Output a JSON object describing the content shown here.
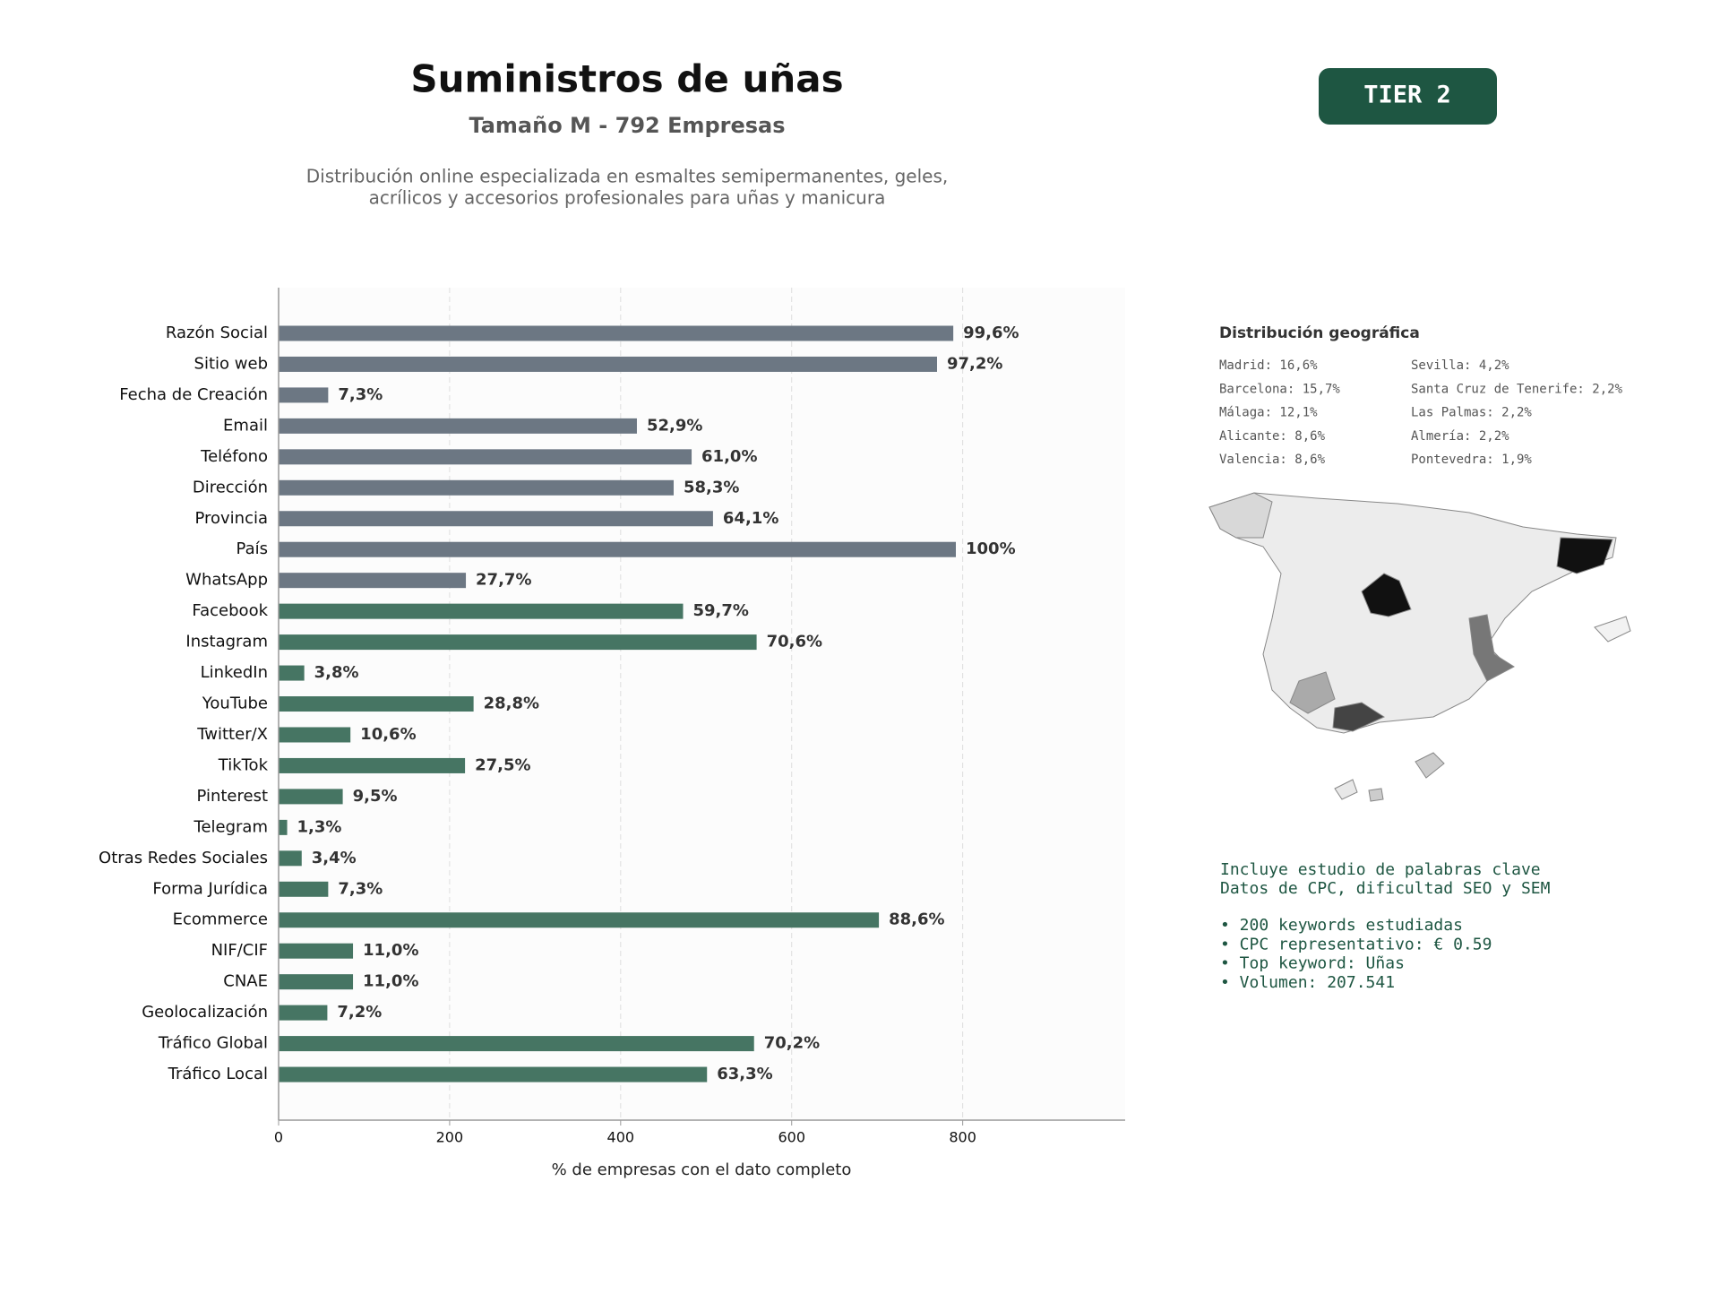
{
  "title": "Suministros de uñas",
  "subtitle": "Tamaño M - 792 Empresas",
  "description": [
    "Distribución online especializada en esmaltes semipermanentes, geles,",
    "acrílicos y accesorios profesionales para uñas y manicura"
  ],
  "badge": "TIER 2",
  "chart_data": {
    "type": "barh",
    "xlabel": "% de empresas con el dato completo",
    "categories": [
      "Razón Social",
      "Sitio web",
      "Fecha de Creación",
      "Email",
      "Teléfono",
      "Dirección",
      "Provincia",
      "País",
      "WhatsApp",
      "Facebook",
      "Instagram",
      "LinkedIn",
      "YouTube",
      "Twitter/X",
      "TikTok",
      "Pinterest",
      "Telegram",
      "Otras Redes Sociales",
      "Forma Jurídica",
      "Ecommerce",
      "NIF/CIF",
      "CNAE",
      "Geolocalización",
      "Tráfico Global",
      "Tráfico Local"
    ],
    "values": [
      789,
      770,
      58,
      419,
      483,
      462,
      508,
      792,
      219,
      473,
      559,
      30,
      228,
      84,
      218,
      75,
      10,
      27,
      58,
      702,
      87,
      87,
      57,
      556,
      501
    ],
    "value_labels": [
      "99,6%",
      "97,2%",
      "7,3%",
      "52,9%",
      "61,0%",
      "58,3%",
      "64,1%",
      "100%",
      "27,7%",
      "59,7%",
      "70,6%",
      "3,8%",
      "28,8%",
      "10,6%",
      "27,5%",
      "9,5%",
      "1,3%",
      "3,4%",
      "7,3%",
      "88,6%",
      "11,0%",
      "11,0%",
      "7,2%",
      "70,2%",
      "63,3%"
    ],
    "colors": [
      "#6c7783",
      "#6c7783",
      "#6c7783",
      "#6c7783",
      "#6c7783",
      "#6c7783",
      "#6c7783",
      "#6c7783",
      "#6c7783",
      "#467563",
      "#467563",
      "#467563",
      "#467563",
      "#467563",
      "#467563",
      "#467563",
      "#467563",
      "#467563",
      "#467563",
      "#467563",
      "#467563",
      "#467563",
      "#467563",
      "#467563",
      "#467563"
    ],
    "xlim": [
      0,
      990
    ],
    "xticks": [
      0,
      200,
      400,
      600,
      800
    ],
    "grid": true
  },
  "geo": {
    "title": "Distribución geográfica",
    "items": [
      "Madrid: 16,6%",
      "Barcelona: 15,7%",
      "Málaga: 12,1%",
      "Alicante: 8,6%",
      "Valencia: 8,6%",
      "Sevilla: 4,2%",
      "Santa Cruz de Tenerife: 2,2%",
      "Las Palmas: 2,2%",
      "Almería: 2,2%",
      "Pontevedra: 1,9%"
    ]
  },
  "keywords": {
    "intro": [
      "Incluye estudio de palabras clave",
      "Datos de CPC, dificultad SEO y SEM"
    ],
    "bullets": [
      "• 200 keywords estudiadas",
      "• CPC representativo: € 0.59",
      "• Top keyword: Uñas",
      "• Volumen: 207.541"
    ]
  }
}
